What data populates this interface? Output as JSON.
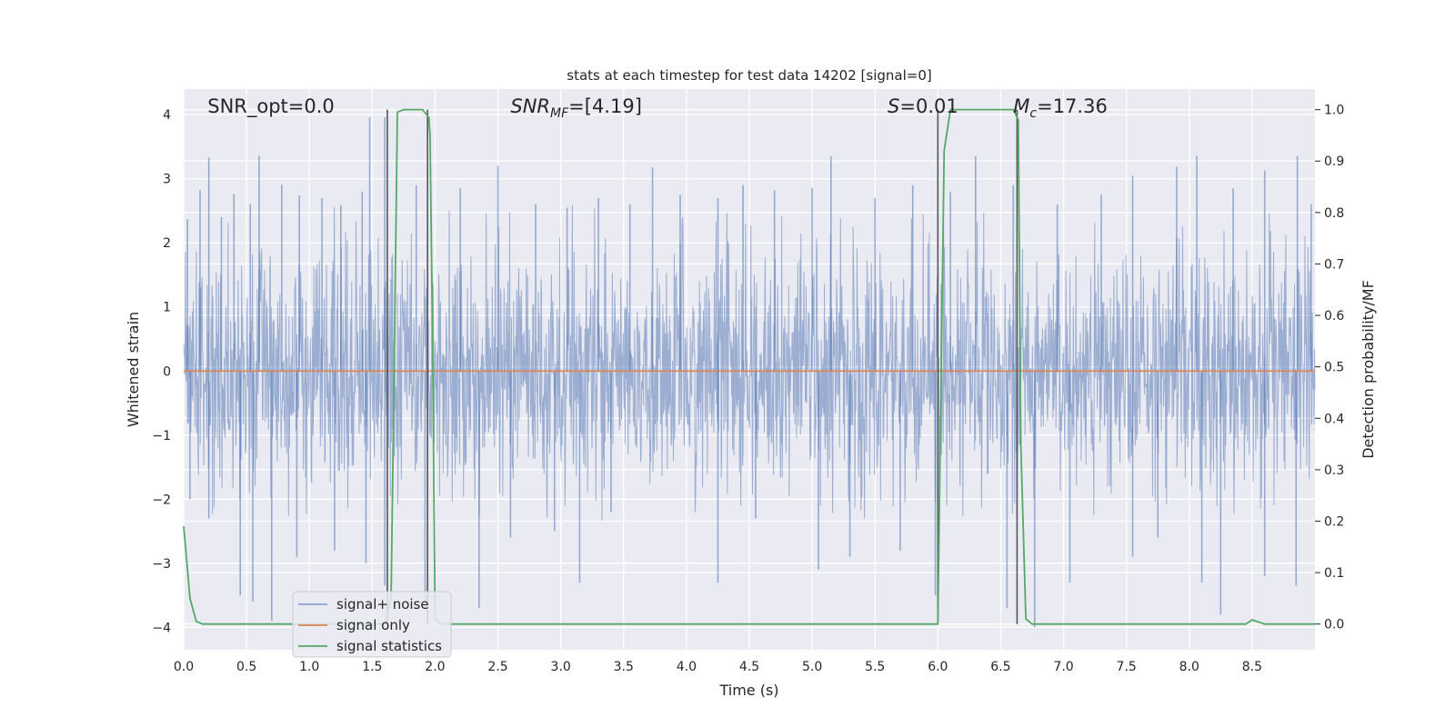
{
  "chart_data": {
    "type": "line",
    "title": "stats at each timestep for test data 14202 [signal=0]",
    "xlabel": "Time (s)",
    "ylabel": "Whitened strain",
    "ylabel_right": "Detection probability/MF",
    "xlim": [
      0,
      9.0
    ],
    "ylim": [
      -4.35,
      4.4
    ],
    "ylim_right": [
      -0.05,
      1.04
    ],
    "x_ticks": [
      0.0,
      0.5,
      1.0,
      1.5,
      2.0,
      2.5,
      3.0,
      3.5,
      4.0,
      4.5,
      5.0,
      5.5,
      6.0,
      6.5,
      7.0,
      7.5,
      8.0,
      8.5
    ],
    "x_tick_labels": [
      "0.0",
      "0.5",
      "1.0",
      "1.5",
      "2.0",
      "2.5",
      "3.0",
      "3.5",
      "4.0",
      "4.5",
      "5.0",
      "5.5",
      "6.0",
      "6.5",
      "7.0",
      "7.5",
      "8.0",
      "8.5"
    ],
    "y_ticks": [
      4,
      3,
      2,
      1,
      0,
      -1,
      -2,
      -3,
      -4
    ],
    "y_tick_labels": [
      "4",
      "3",
      "2",
      "1",
      "0",
      "−1",
      "−2",
      "−3",
      "−4"
    ],
    "y_right_ticks": [
      1.0,
      0.9,
      0.8,
      0.7,
      0.6,
      0.5,
      0.4,
      0.3,
      0.2,
      0.1,
      0.0
    ],
    "y_right_tick_labels": [
      "1.0",
      "0.9",
      "0.8",
      "0.7",
      "0.6",
      "0.5",
      "0.4",
      "0.3",
      "0.2",
      "0.1",
      "0.0"
    ],
    "grid": true,
    "legend_position": "lower-left",
    "series": [
      {
        "name": "signal+ noise",
        "kind": "noise",
        "axis": "left",
        "color": "#4c72b0",
        "envelope_positive": [
          2.3,
          2.5,
          2.7,
          2.4,
          2.6,
          2.5,
          2.7,
          2.4,
          2.6,
          2.5,
          2.4,
          2.6,
          2.5,
          2.6,
          2.5,
          2.4,
          2.6,
          2.5
        ],
        "envelope_negative": [
          -2.2,
          -2.3,
          -2.4,
          -2.2,
          -2.3,
          -2.2,
          -2.4,
          -2.3,
          -2.2,
          -2.3,
          -2.4,
          -2.2,
          -2.3,
          -2.2,
          -2.3,
          -2.4,
          -2.2,
          -2.3
        ],
        "peak_samples": [
          [
            0.03,
            2.37
          ],
          [
            0.13,
            2.82
          ],
          [
            0.2,
            3.33
          ],
          [
            0.3,
            2.4
          ],
          [
            0.4,
            2.76
          ],
          [
            0.53,
            2.6
          ],
          [
            0.6,
            3.36
          ],
          [
            0.78,
            2.91
          ],
          [
            0.92,
            2.74
          ],
          [
            1.1,
            2.7
          ],
          [
            1.25,
            2.59
          ],
          [
            1.42,
            2.8
          ],
          [
            1.48,
            3.96
          ],
          [
            1.6,
            3.96
          ],
          [
            1.85,
            2.9
          ],
          [
            2.2,
            2.85
          ],
          [
            2.5,
            3.2
          ],
          [
            2.8,
            2.6
          ],
          [
            3.05,
            2.55
          ],
          [
            3.3,
            2.7
          ],
          [
            3.55,
            2.6
          ],
          [
            3.73,
            3.18
          ],
          [
            3.95,
            2.75
          ],
          [
            4.25,
            2.7
          ],
          [
            4.45,
            2.9
          ],
          [
            4.7,
            2.82
          ],
          [
            5.0,
            2.86
          ],
          [
            5.15,
            3.35
          ],
          [
            5.5,
            2.7
          ],
          [
            5.8,
            2.9
          ],
          [
            6.1,
            2.8
          ],
          [
            6.3,
            3.35
          ],
          [
            6.6,
            2.9
          ],
          [
            6.95,
            2.6
          ],
          [
            7.3,
            2.75
          ],
          [
            7.55,
            3.05
          ],
          [
            7.9,
            3.19
          ],
          [
            8.06,
            3.36
          ],
          [
            8.35,
            2.85
          ],
          [
            8.6,
            3.13
          ],
          [
            8.86,
            3.35
          ],
          [
            8.97,
            2.6
          ]
        ],
        "trough_samples": [
          [
            0.05,
            -2.0
          ],
          [
            0.2,
            -2.3
          ],
          [
            0.45,
            -3.5
          ],
          [
            0.55,
            -3.6
          ],
          [
            0.7,
            -3.9
          ],
          [
            0.9,
            -2.9
          ],
          [
            1.2,
            -2.8
          ],
          [
            1.45,
            -3.0
          ],
          [
            1.6,
            -3.35
          ],
          [
            1.92,
            -3.7
          ],
          [
            2.35,
            -3.7
          ],
          [
            2.6,
            -2.6
          ],
          [
            2.95,
            -2.5
          ],
          [
            3.15,
            -3.3
          ],
          [
            3.4,
            -2.2
          ],
          [
            4.25,
            -3.3
          ],
          [
            4.55,
            -2.3
          ],
          [
            5.05,
            -3.1
          ],
          [
            5.3,
            -2.9
          ],
          [
            5.7,
            -2.8
          ],
          [
            5.98,
            -3.5
          ],
          [
            6.55,
            -3.7
          ],
          [
            6.77,
            -4.0
          ],
          [
            7.05,
            -3.3
          ],
          [
            7.55,
            -2.9
          ],
          [
            7.75,
            -2.6
          ],
          [
            8.1,
            -3.3
          ],
          [
            8.25,
            -3.8
          ],
          [
            8.6,
            -3.2
          ],
          [
            8.85,
            -3.35
          ]
        ]
      },
      {
        "name": "signal only",
        "kind": "line",
        "axis": "left",
        "color": "#dd8452",
        "x": [
          0.0,
          9.0
        ],
        "y": [
          0.0,
          0.0
        ]
      },
      {
        "name": "signal statistics",
        "kind": "line",
        "axis": "right",
        "color": "#55a868",
        "x": [
          0.0,
          0.05,
          0.1,
          0.15,
          1.5,
          1.6,
          1.65,
          1.68,
          1.7,
          1.75,
          1.9,
          1.95,
          1.96,
          1.98,
          2.0,
          2.05,
          6.0,
          6.05,
          6.1,
          6.15,
          6.2,
          6.6,
          6.64,
          6.66,
          6.7,
          6.75,
          8.45,
          8.5,
          8.6,
          9.0
        ],
        "y": [
          0.19,
          0.05,
          0.005,
          0.0,
          0.0,
          0.0,
          0.05,
          0.6,
          0.995,
          1.0,
          1.0,
          0.985,
          0.95,
          0.55,
          0.01,
          0.0,
          0.0,
          0.92,
          1.0,
          1.0,
          1.0,
          1.0,
          0.98,
          0.35,
          0.01,
          0.0,
          0.0,
          0.008,
          0.0,
          0.0
        ]
      }
    ],
    "vertical_lines": [
      1.62,
      1.94,
      6.0,
      6.63
    ],
    "annotations": [
      {
        "x": 0.19,
        "text": "SNR_opt=0.0"
      },
      {
        "x": 2.6,
        "text": "SNR_MF=[4.19]"
      },
      {
        "x": 5.6,
        "text": "S=0.01"
      },
      {
        "x": 6.6,
        "text": "M_c=17.36"
      }
    ],
    "colors": {
      "axes_background": "#eaeaf2",
      "grid": "#ffffff",
      "vertical_line": "#555555"
    }
  }
}
